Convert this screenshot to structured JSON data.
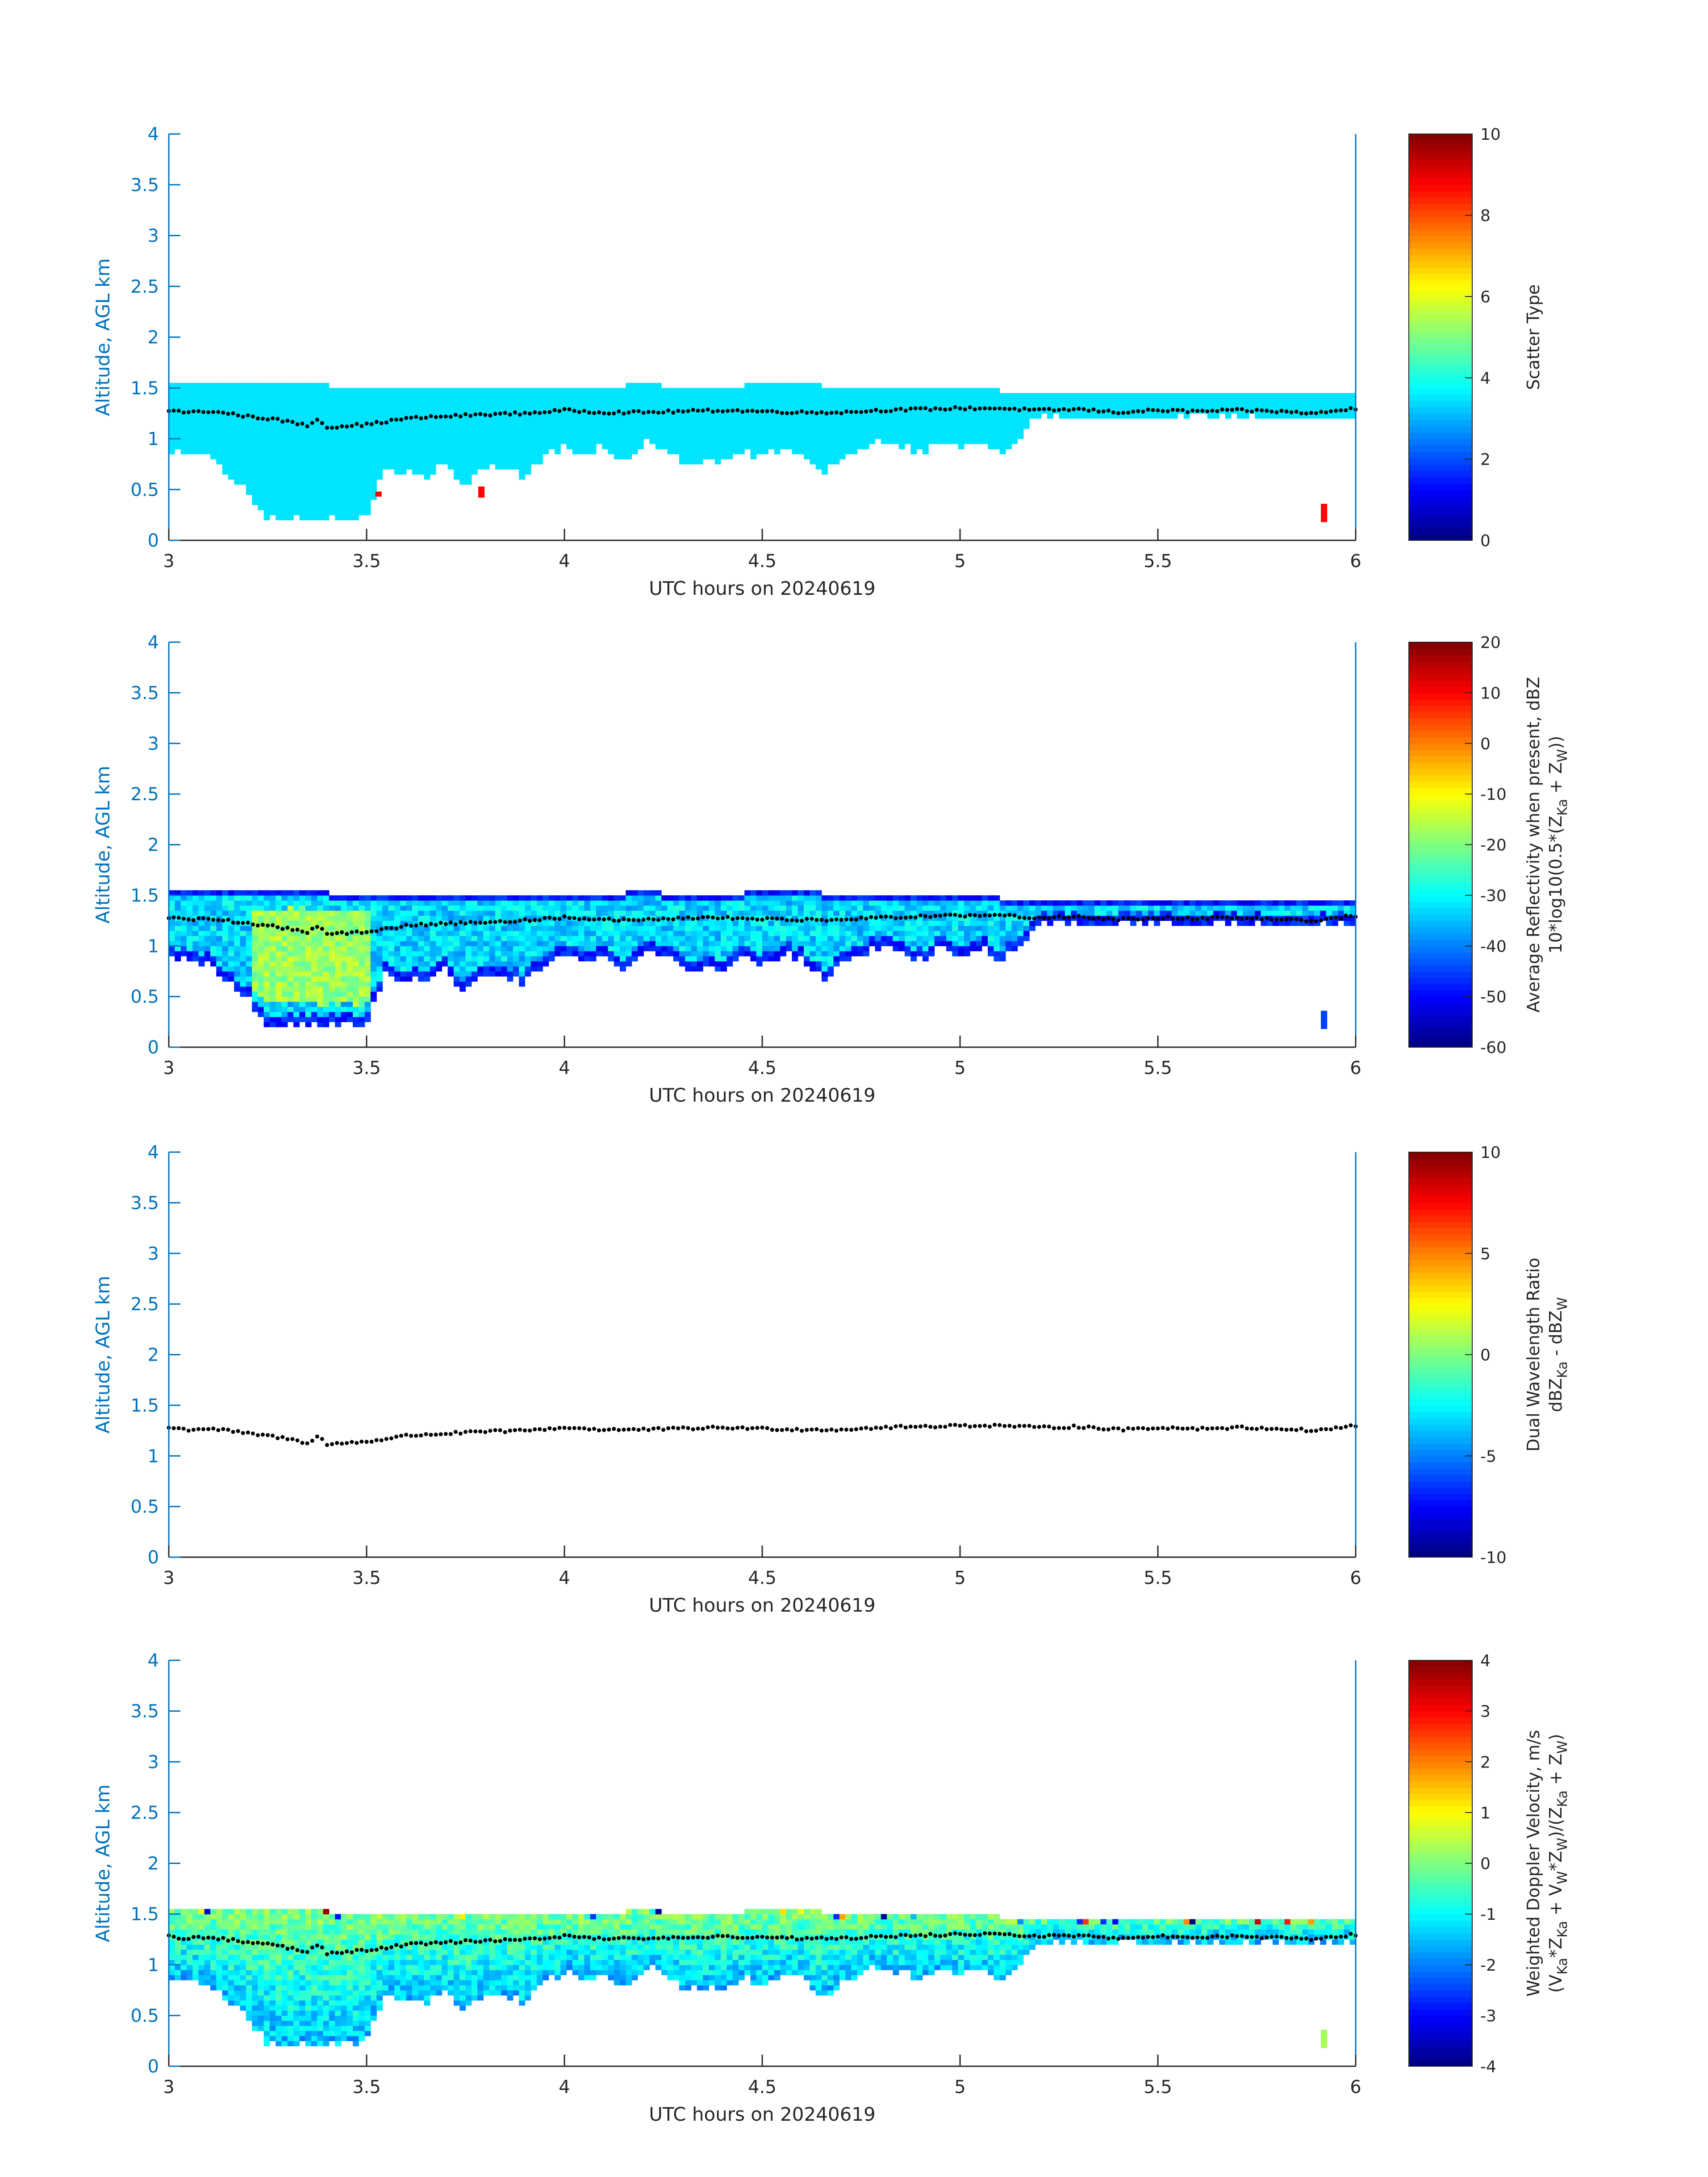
{
  "colors": {
    "axis_left": "#0072BD",
    "axis_text": "#262626",
    "cloud_top_marker": "#000000",
    "scatter_cloud": "#3BFFD8",
    "scatter_precip": "#FF4A00"
  },
  "colormap": "jet",
  "chart_data": [
    {
      "type": "heatmap",
      "title": "",
      "xlabel": "UTC hours on 20240619",
      "ylabel": "Altitude, AGL km",
      "xlim": [
        3,
        6
      ],
      "ylim": [
        0,
        4
      ],
      "xticks": [
        "3",
        "3.5",
        "4",
        "4.5",
        "5",
        "5.5",
        "6"
      ],
      "yticks": [
        "0",
        "0.5",
        "1",
        "1.5",
        "2",
        "2.5",
        "3",
        "3.5",
        "4"
      ],
      "colorbar": {
        "label_lines": [
          "Scatter Type"
        ],
        "range": [
          0,
          10
        ],
        "ticks": [
          "0",
          "2",
          "4",
          "6",
          "8",
          "10"
        ]
      },
      "cloud_layer": {
        "top_km": 1.5,
        "typical_value": 3.5
      },
      "special_patches": [
        {
          "x": 3.53,
          "y_from": 0.43,
          "y_to": 0.48,
          "value": 8.7
        },
        {
          "x": 3.79,
          "y_from": 0.42,
          "y_to": 0.53,
          "value": 8.7
        },
        {
          "x": 5.92,
          "y_from": 0.18,
          "y_to": 0.36,
          "value": 8.7
        }
      ],
      "show_cloud_top_markers": true
    },
    {
      "type": "heatmap",
      "title": "",
      "xlabel": "UTC hours on 20240619",
      "ylabel": "Altitude, AGL km",
      "xlim": [
        3,
        6
      ],
      "ylim": [
        0,
        4
      ],
      "xticks": [
        "3",
        "3.5",
        "4",
        "4.5",
        "5",
        "5.5",
        "6"
      ],
      "yticks": [
        "0",
        "0.5",
        "1",
        "1.5",
        "2",
        "2.5",
        "3",
        "3.5",
        "4"
      ],
      "colorbar": {
        "label_lines": [
          "Average Reflectivity when present, dBZ",
          "10*log10(0.5*(Z_Ka + Z_W))"
        ],
        "range": [
          -60,
          20
        ],
        "ticks": [
          "-60",
          "-50",
          "-40",
          "-30",
          "-20",
          "-10",
          "0",
          "10",
          "20"
        ]
      },
      "value_profile": {
        "edge_value": -52,
        "interior_value": -33,
        "core_value": -18
      },
      "special_patches": [
        {
          "x": 5.92,
          "y_from": 0.18,
          "y_to": 0.36,
          "value": -45
        }
      ],
      "show_cloud_top_markers": true
    },
    {
      "type": "heatmap",
      "title": "",
      "xlabel": "UTC hours on 20240619",
      "ylabel": "Altitude, AGL km",
      "xlim": [
        3,
        6
      ],
      "ylim": [
        0,
        4
      ],
      "xticks": [
        "3",
        "3.5",
        "4",
        "4.5",
        "5",
        "5.5",
        "6"
      ],
      "yticks": [
        "0",
        "0.5",
        "1",
        "1.5",
        "2",
        "2.5",
        "3",
        "3.5",
        "4"
      ],
      "colorbar": {
        "label_lines": [
          "Dual Wavelength Ratio",
          "dBZ_Ka - dBZ_W"
        ],
        "range": [
          -10,
          10
        ],
        "ticks": [
          "-10",
          "-5",
          "0",
          "5",
          "10"
        ]
      },
      "empty_field": true,
      "show_cloud_top_markers": true
    },
    {
      "type": "heatmap",
      "title": "",
      "xlabel": "UTC hours on 20240619",
      "ylabel": "Altitude, AGL km",
      "xlim": [
        3,
        6
      ],
      "ylim": [
        0,
        4
      ],
      "xticks": [
        "3",
        "3.5",
        "4",
        "4.5",
        "5",
        "5.5",
        "6"
      ],
      "yticks": [
        "0",
        "0.5",
        "1",
        "1.5",
        "2",
        "2.5",
        "3",
        "3.5",
        "4"
      ],
      "colorbar": {
        "label_lines": [
          "Weighted Doppler Velocity, m/s",
          "(V_Ka*Z_Ka + V_W*Z_W)/(Z_Ka + Z_W)"
        ],
        "range": [
          -4,
          4
        ],
        "ticks": [
          "-4",
          "-3",
          "-2",
          "-1",
          "0",
          "1",
          "2",
          "3",
          "4"
        ]
      },
      "value_profile": {
        "upper_value": 0.0,
        "lower_value": -1.5,
        "top_noise": [
          -4,
          4
        ]
      },
      "special_patches": [
        {
          "x": 5.92,
          "y_from": 0.18,
          "y_to": 0.36,
          "value": 0.3
        }
      ],
      "show_cloud_top_markers": true
    }
  ],
  "cloud_boundary": {
    "x": [
      3.0,
      3.05,
      3.1,
      3.15,
      3.2,
      3.25,
      3.3,
      3.35,
      3.4,
      3.45,
      3.5,
      3.55,
      3.6,
      3.65,
      3.7,
      3.75,
      3.8,
      3.85,
      3.9,
      3.95,
      4.0,
      4.05,
      4.1,
      4.15,
      4.2,
      4.25,
      4.3,
      4.35,
      4.4,
      4.45,
      4.5,
      4.55,
      4.6,
      4.65,
      4.7,
      4.75,
      4.8,
      4.85,
      4.9,
      4.95,
      5.0,
      5.05,
      5.1,
      5.15,
      5.2,
      6.0
    ],
    "top_km": [
      1.55,
      1.52,
      1.5,
      1.55,
      1.5,
      1.55,
      1.55,
      1.55,
      1.5,
      1.5,
      1.5,
      1.5,
      1.5,
      1.5,
      1.5,
      1.5,
      1.5,
      1.5,
      1.5,
      1.5,
      1.5,
      1.5,
      1.5,
      1.5,
      1.55,
      1.5,
      1.5,
      1.5,
      1.5,
      1.5,
      1.55,
      1.5,
      1.55,
      1.5,
      1.5,
      1.5,
      1.5,
      1.5,
      1.5,
      1.5,
      1.5,
      1.5,
      1.45,
      1.45,
      1.45,
      1.45
    ],
    "base_km": [
      0.85,
      0.85,
      0.8,
      0.65,
      0.45,
      0.2,
      0.2,
      0.2,
      0.2,
      0.2,
      0.2,
      0.7,
      0.65,
      0.6,
      0.75,
      0.5,
      0.7,
      0.7,
      0.6,
      0.8,
      0.9,
      0.85,
      0.9,
      0.75,
      0.95,
      0.9,
      0.75,
      0.75,
      0.75,
      0.85,
      0.8,
      0.9,
      0.85,
      0.65,
      0.8,
      0.9,
      0.95,
      0.9,
      0.85,
      0.95,
      0.9,
      0.95,
      0.85,
      1.0,
      1.2,
      1.2
    ]
  },
  "cloud_top_markers": {
    "x": [
      3.0,
      3.05,
      3.1,
      3.15,
      3.2,
      3.25,
      3.3,
      3.35,
      3.38,
      3.4,
      3.45,
      3.5,
      3.55,
      3.6,
      3.65,
      3.7,
      3.8,
      3.9,
      4.0,
      4.1,
      4.2,
      4.3,
      4.4,
      4.5,
      4.6,
      4.7,
      4.8,
      4.9,
      5.0,
      5.1,
      5.2,
      5.3,
      5.4,
      5.5,
      5.6,
      5.7,
      5.8,
      5.9,
      6.0
    ],
    "y_km": [
      1.28,
      1.26,
      1.27,
      1.25,
      1.22,
      1.2,
      1.17,
      1.13,
      1.2,
      1.11,
      1.13,
      1.14,
      1.17,
      1.2,
      1.21,
      1.22,
      1.24,
      1.25,
      1.28,
      1.26,
      1.26,
      1.27,
      1.28,
      1.27,
      1.26,
      1.26,
      1.28,
      1.29,
      1.3,
      1.3,
      1.28,
      1.29,
      1.26,
      1.28,
      1.27,
      1.28,
      1.27,
      1.25,
      1.3
    ]
  }
}
